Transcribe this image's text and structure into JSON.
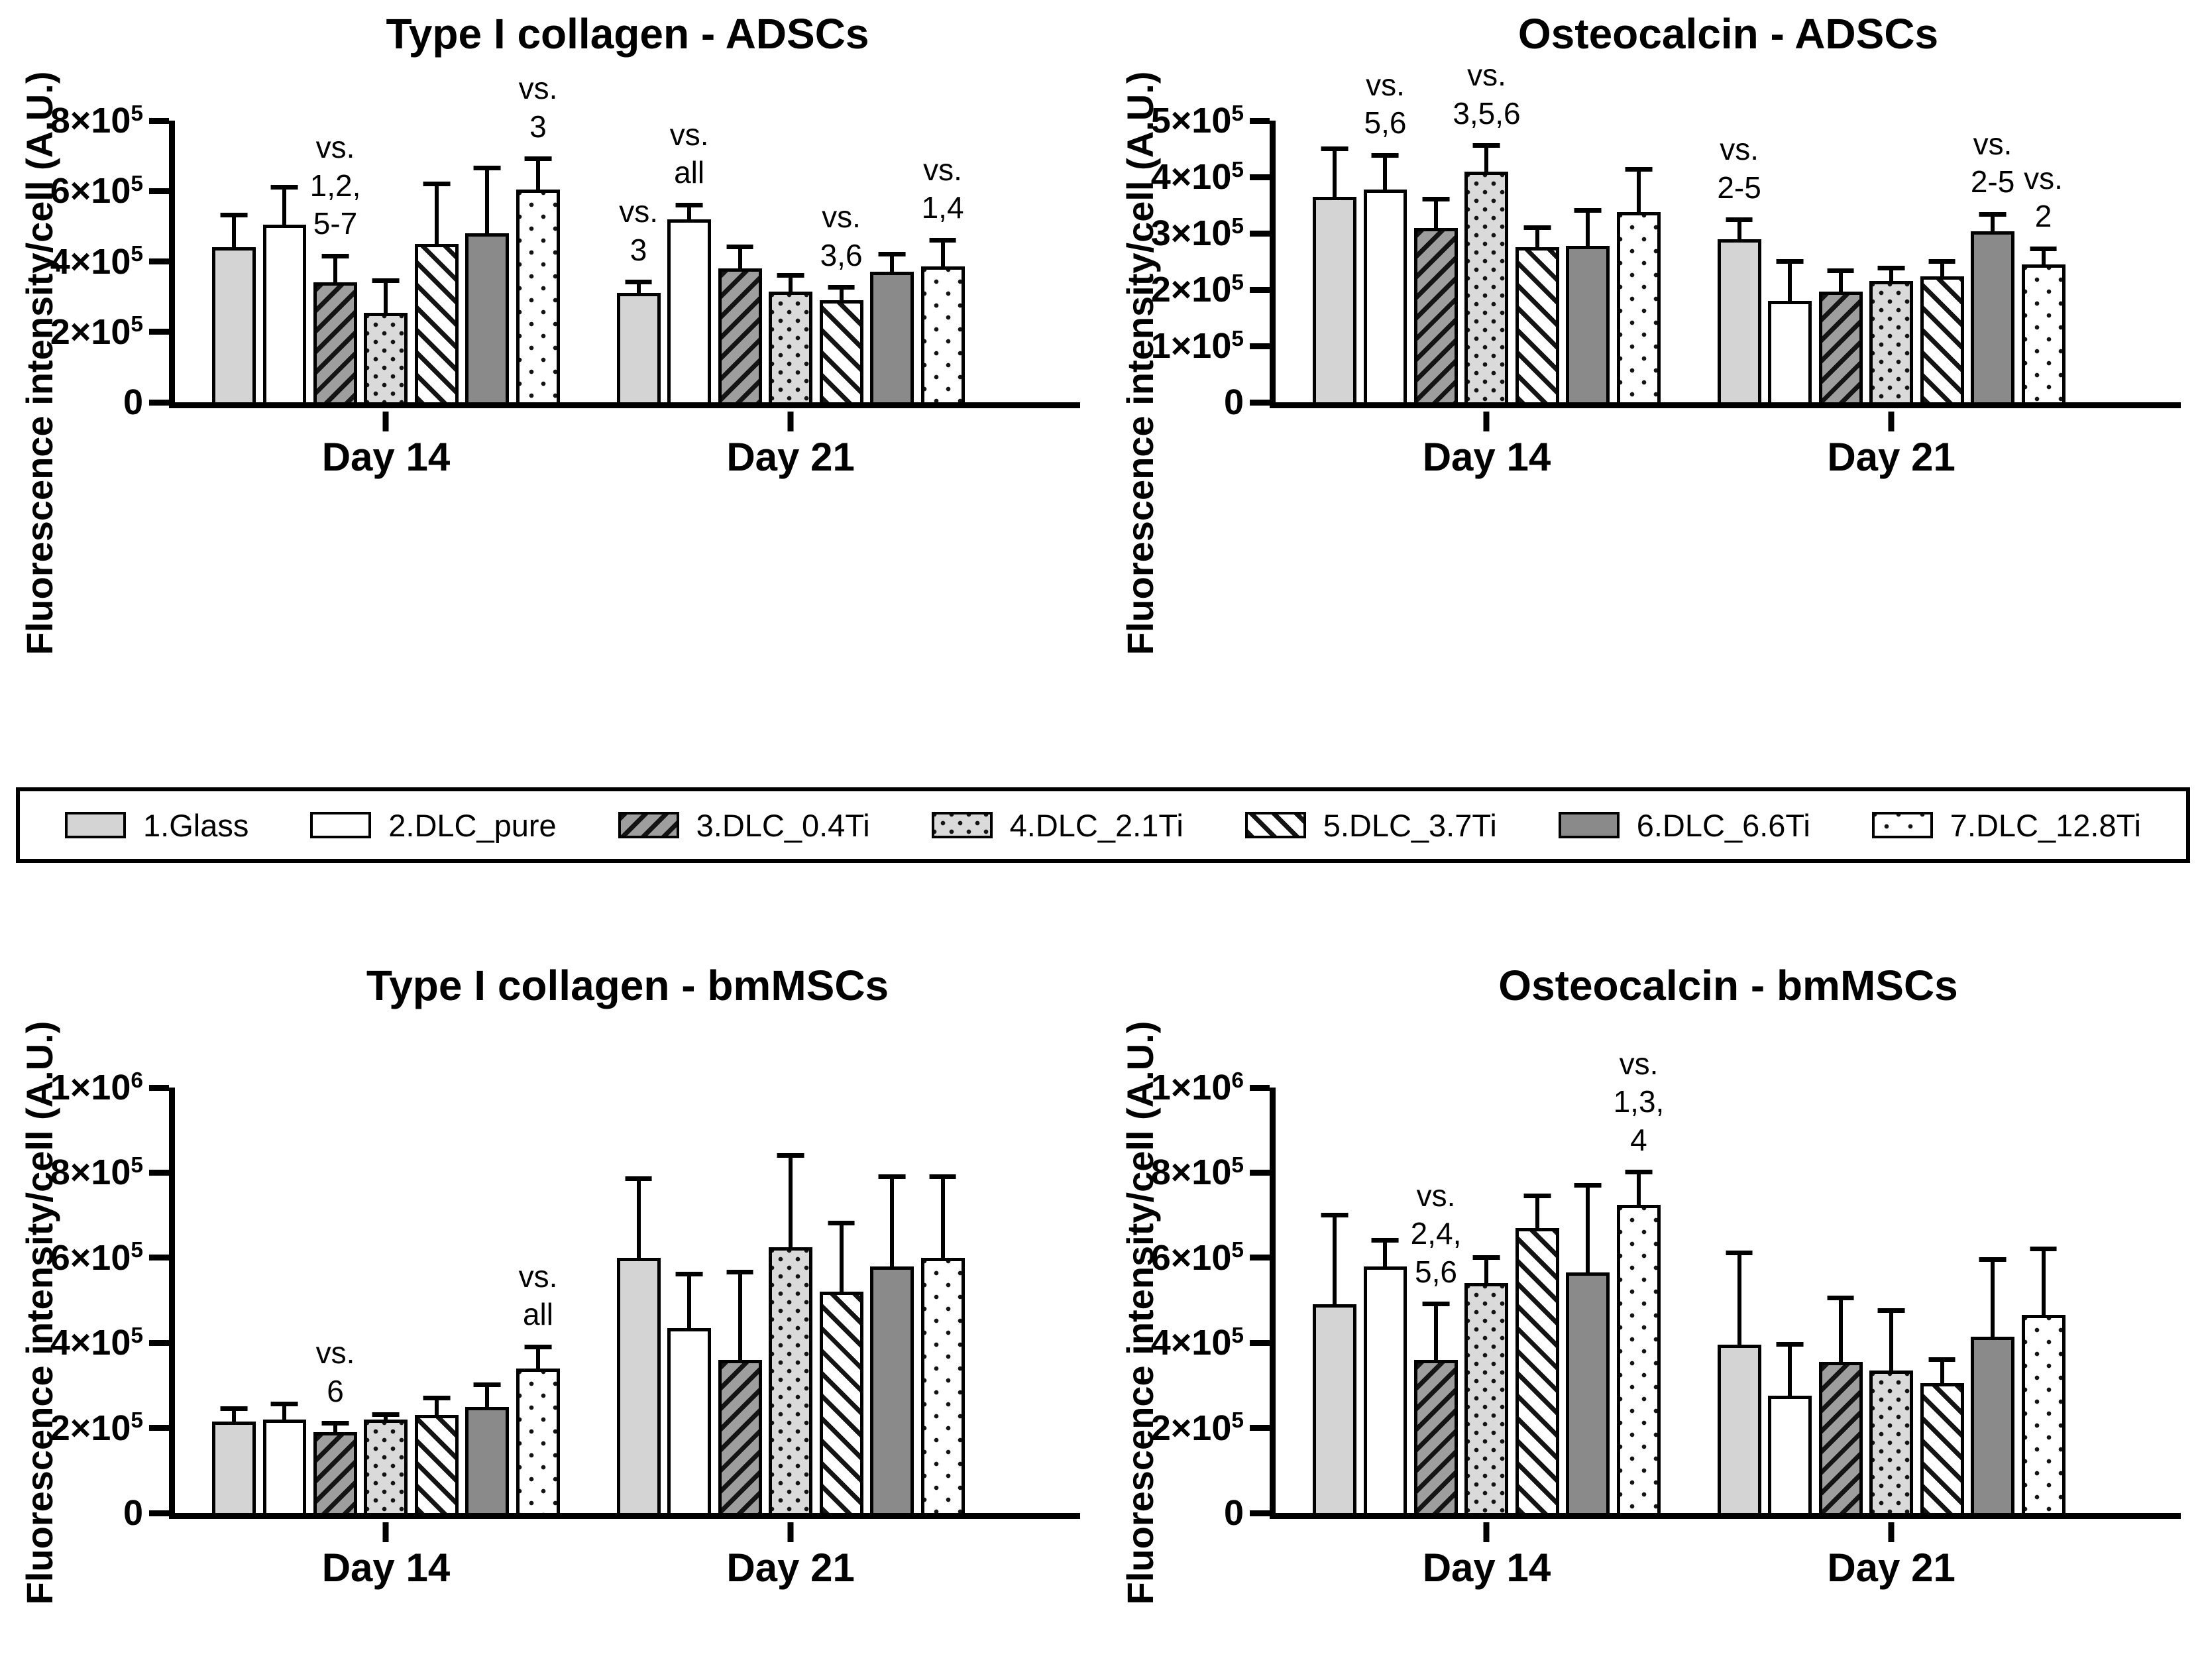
{
  "figure": {
    "legend": {
      "items": [
        {
          "label": "1.Glass",
          "pattern": "p1"
        },
        {
          "label": "2.DLC_pure",
          "pattern": "p2"
        },
        {
          "label": "3.DLC_0.4Ti",
          "pattern": "p3"
        },
        {
          "label": "4.DLC_2.1Ti",
          "pattern": "p4"
        },
        {
          "label": "5.DLC_3.7Ti",
          "pattern": "p5"
        },
        {
          "label": "6.DLC_6.6Ti",
          "pattern": "p6"
        },
        {
          "label": "7.DLC_12.8Ti",
          "pattern": "p7"
        }
      ]
    }
  },
  "chart_data": [
    {
      "id": "type1-collagen-adscs",
      "type": "bar",
      "position": "top-left",
      "title": "Type I collagen - ADSCs",
      "ylabel": "Fluorescence intensity/cell (A.U.)",
      "ylim": [
        0,
        800000
      ],
      "grid": false,
      "yticks": [
        {
          "label": "0",
          "sup": "",
          "value": 0
        },
        {
          "label": "2×10",
          "sup": "5",
          "value": 200000
        },
        {
          "label": "4×10",
          "sup": "5",
          "value": 400000
        },
        {
          "label": "6×10",
          "sup": "5",
          "value": 600000
        },
        {
          "label": "8×10",
          "sup": "5",
          "value": 800000
        }
      ],
      "categories": [
        "Day 14",
        "Day 21"
      ],
      "series_labels": [
        "1.Glass",
        "2.DLC_pure",
        "3.DLC_0.4Ti",
        "4.DLC_2.1Ti",
        "5.DLC_3.7Ti",
        "6.DLC_6.6Ti",
        "7.DLC_12.8Ti"
      ],
      "groups": [
        {
          "label": "Day 14",
          "values": [
            440000,
            505000,
            340000,
            255000,
            450000,
            480000,
            605000
          ],
          "err_top": [
            530000,
            610000,
            415000,
            345000,
            620000,
            665000,
            690000
          ],
          "notes": [
            null,
            null,
            [
              "vs.",
              "1,2,",
              "5-7"
            ],
            null,
            null,
            null,
            [
              "vs.",
              "3"
            ]
          ]
        },
        {
          "label": "Day 21",
          "values": [
            310000,
            520000,
            380000,
            315000,
            290000,
            370000,
            385000
          ],
          "err_top": [
            340000,
            560000,
            440000,
            360000,
            325000,
            420000,
            460000
          ],
          "notes": [
            [
              "vs.",
              "3"
            ],
            [
              "vs.",
              "all"
            ],
            null,
            null,
            [
              "vs.",
              "3,6"
            ],
            null,
            [
              "vs.",
              "1,4"
            ]
          ]
        }
      ]
    },
    {
      "id": "osteocalcin-adscs",
      "type": "bar",
      "position": "top-right",
      "title": "Osteocalcin - ADSCs",
      "ylabel": "Fluorescence intensity/cell (A.U.)",
      "ylim": [
        0,
        500000
      ],
      "grid": false,
      "yticks": [
        {
          "label": "0",
          "sup": "",
          "value": 0
        },
        {
          "label": "1×10",
          "sup": "5",
          "value": 100000
        },
        {
          "label": "2×10",
          "sup": "5",
          "value": 200000
        },
        {
          "label": "3×10",
          "sup": "5",
          "value": 300000
        },
        {
          "label": "4×10",
          "sup": "5",
          "value": 400000
        },
        {
          "label": "5×10",
          "sup": "5",
          "value": 500000
        }
      ],
      "categories": [
        "Day 14",
        "Day 21"
      ],
      "series_labels": [
        "1.Glass",
        "2.DLC_pure",
        "3.DLC_0.4Ti",
        "4.DLC_2.1Ti",
        "5.DLC_3.7Ti",
        "6.DLC_6.6Ti",
        "7.DLC_12.8Ti"
      ],
      "groups": [
        {
          "label": "Day 14",
          "values": [
            365000,
            378000,
            310000,
            410000,
            275000,
            278000,
            338000
          ],
          "err_top": [
            450000,
            438000,
            360000,
            455000,
            310000,
            340000,
            413000
          ],
          "notes": [
            null,
            [
              "vs.",
              "5,6"
            ],
            null,
            [
              "vs.",
              "3,5,6"
            ],
            null,
            null,
            null
          ]
        },
        {
          "label": "Day 21",
          "values": [
            290000,
            180000,
            197000,
            215000,
            223000,
            303000,
            245000
          ],
          "err_top": [
            323000,
            250000,
            233000,
            238000,
            250000,
            333000,
            272000
          ],
          "notes": [
            [
              "vs.",
              "2-5"
            ],
            null,
            null,
            null,
            null,
            [
              "vs.",
              "2-5"
            ],
            [
              "vs.",
              "2"
            ]
          ]
        }
      ]
    },
    {
      "id": "type1-collagen-bmmscs",
      "type": "bar",
      "position": "bottom-left",
      "title": "Type I collagen - bmMSCs",
      "ylabel": "Fluorescence intensity/cell (A.U.)",
      "ylim": [
        0,
        1000000
      ],
      "grid": false,
      "yticks": [
        {
          "label": "0",
          "sup": "",
          "value": 0
        },
        {
          "label": "2×10",
          "sup": "5",
          "value": 200000
        },
        {
          "label": "4×10",
          "sup": "5",
          "value": 400000
        },
        {
          "label": "6×10",
          "sup": "5",
          "value": 600000
        },
        {
          "label": "8×10",
          "sup": "5",
          "value": 800000
        },
        {
          "label": "1×10",
          "sup": "6",
          "value": 1000000
        }
      ],
      "categories": [
        "Day 14",
        "Day 21"
      ],
      "series_labels": [
        "1.Glass",
        "2.DLC_pure",
        "3.DLC_0.4Ti",
        "4.DLC_2.1Ti",
        "5.DLC_3.7Ti",
        "6.DLC_6.6Ti",
        "7.DLC_12.8Ti"
      ],
      "groups": [
        {
          "label": "Day 14",
          "values": [
            215000,
            220000,
            190000,
            220000,
            230000,
            250000,
            340000
          ],
          "err_top": [
            245000,
            255000,
            210000,
            230000,
            270000,
            300000,
            390000
          ],
          "notes": [
            null,
            null,
            [
              "vs.",
              "6"
            ],
            null,
            null,
            null,
            [
              "vs.",
              "all"
            ]
          ]
        },
        {
          "label": "Day 21",
          "values": [
            600000,
            435000,
            360000,
            625000,
            520000,
            580000,
            600000
          ],
          "err_top": [
            785000,
            560000,
            565000,
            840000,
            680000,
            790000,
            790000
          ],
          "notes": [
            null,
            null,
            null,
            null,
            null,
            null,
            null
          ]
        }
      ]
    },
    {
      "id": "osteocalcin-bmmscs",
      "type": "bar",
      "position": "bottom-right",
      "title": "Osteocalcin - bmMSCs",
      "ylabel": "Fluorescence intensity/cell (A.U.)",
      "ylim": [
        0,
        1000000
      ],
      "grid": false,
      "yticks": [
        {
          "label": "0",
          "sup": "",
          "value": 0
        },
        {
          "label": "2×10",
          "sup": "5",
          "value": 200000
        },
        {
          "label": "4×10",
          "sup": "5",
          "value": 400000
        },
        {
          "label": "6×10",
          "sup": "5",
          "value": 600000
        },
        {
          "label": "8×10",
          "sup": "5",
          "value": 800000
        },
        {
          "label": "1×10",
          "sup": "6",
          "value": 1000000
        }
      ],
      "categories": [
        "Day 14",
        "Day 21"
      ],
      "series_labels": [
        "1.Glass",
        "2.DLC_pure",
        "3.DLC_0.4Ti",
        "4.DLC_2.1Ti",
        "5.DLC_3.7Ti",
        "6.DLC_6.6Ti",
        "7.DLC_12.8Ti"
      ],
      "groups": [
        {
          "label": "Day 14",
          "values": [
            490000,
            580000,
            360000,
            540000,
            670000,
            565000,
            725000
          ],
          "err_top": [
            700000,
            640000,
            490000,
            600000,
            745000,
            770000,
            800000
          ],
          "notes": [
            null,
            null,
            [
              "vs.",
              "2,4,",
              "5,6"
            ],
            null,
            null,
            null,
            [
              "vs.",
              "1,3,",
              "4"
            ]
          ]
        },
        {
          "label": "Day 21",
          "values": [
            395000,
            275000,
            355000,
            335000,
            305000,
            415000,
            465000
          ],
          "err_top": [
            610000,
            395000,
            505000,
            475000,
            360000,
            595000,
            620000
          ],
          "notes": [
            null,
            null,
            null,
            null,
            null,
            null,
            null
          ]
        }
      ]
    }
  ]
}
